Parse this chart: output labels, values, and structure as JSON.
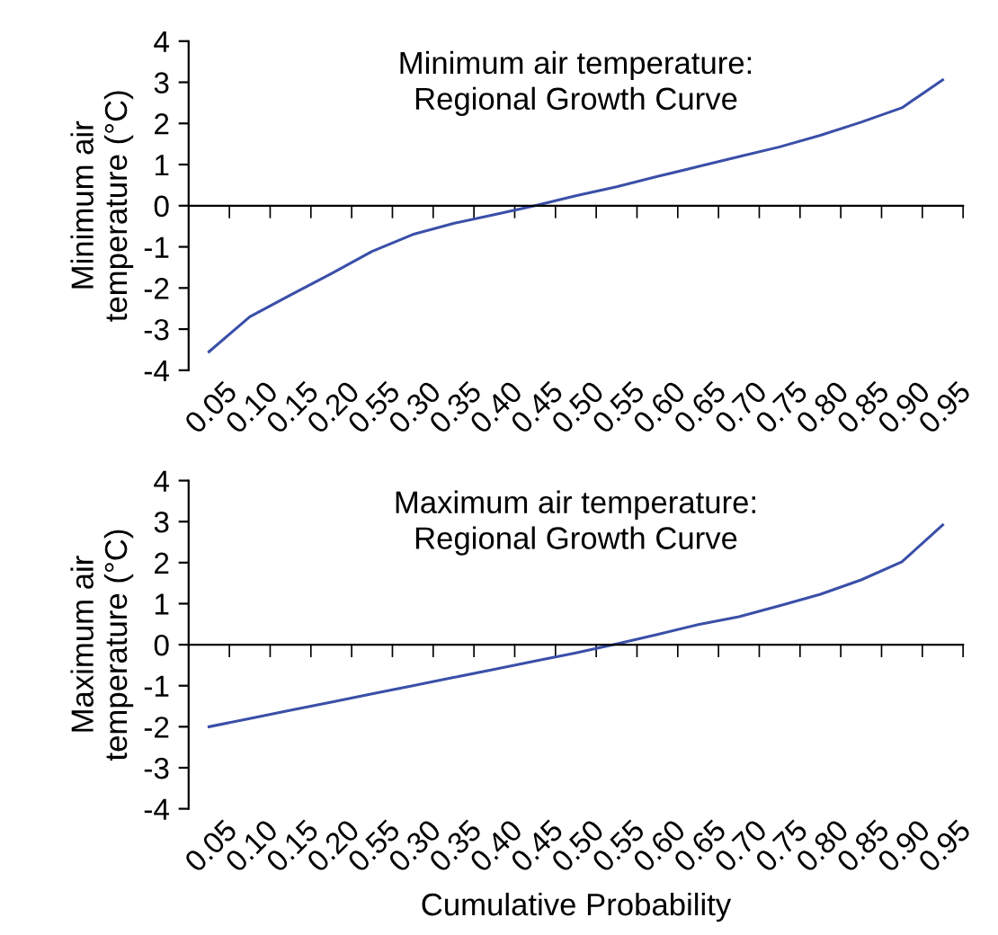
{
  "chart_data": [
    {
      "type": "line",
      "title": "Minimum air temperature:\nRegional Growth Curve",
      "ylabel": "Minimum air\ntemperature (°C)",
      "categories": [
        "0.05",
        "0.10",
        "0.15",
        "0.20",
        "0.55",
        "0.30",
        "0.35",
        "0.40",
        "0.45",
        "0.50",
        "0.55",
        "0.60",
        "0.65",
        "0.70",
        "0.75",
        "0.80",
        "0.85",
        "0.90",
        "0.95"
      ],
      "series": [
        {
          "color": "#3a4fa8",
          "values": [
            -3.55,
            -2.7,
            -2.17,
            -1.65,
            -1.11,
            -0.7,
            -0.43,
            -0.22,
            0.0,
            0.24,
            0.46,
            0.71,
            0.95,
            1.19,
            1.43,
            1.71,
            2.03,
            2.38,
            3.06
          ]
        }
      ],
      "ylim": [
        -4,
        4
      ],
      "yticks": [
        -4,
        -3,
        -2,
        -1,
        0,
        1,
        2,
        3,
        4
      ],
      "legend": false,
      "marker": "none",
      "line_style": "solid"
    },
    {
      "type": "line",
      "title": "Maximum air temperature:\nRegional Growth Curve",
      "ylabel": "Maximum air\ntemperature (°C)",
      "xlabel": "Cumulative Probability",
      "categories": [
        "0.05",
        "0.10",
        "0.15",
        "0.20",
        "0.55",
        "0.30",
        "0.35",
        "0.40",
        "0.45",
        "0.50",
        "0.55",
        "0.60",
        "0.65",
        "0.70",
        "0.75",
        "0.80",
        "0.85",
        "0.90",
        "0.95"
      ],
      "series": [
        {
          "color": "#3a4fa8",
          "values": [
            -2.0,
            -1.8,
            -1.6,
            -1.4,
            -1.2,
            -1.0,
            -0.8,
            -0.6,
            -0.4,
            -0.2,
            0.02,
            0.25,
            0.49,
            0.68,
            0.95,
            1.23,
            1.58,
            2.02,
            2.92
          ]
        }
      ],
      "ylim": [
        -4,
        4
      ],
      "yticks": [
        -4,
        -3,
        -2,
        -1,
        0,
        1,
        2,
        3,
        4
      ],
      "legend": false,
      "marker": "none",
      "line_style": "solid"
    }
  ]
}
